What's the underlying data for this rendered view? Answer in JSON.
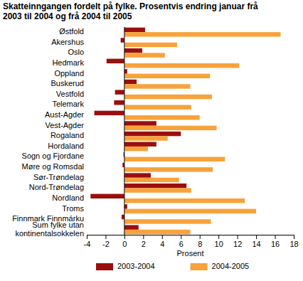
{
  "chart_data": {
    "type": "bar",
    "orientation": "horizontal",
    "title": [
      "Skatteinngangen fordelt på fylke. Prosentvis endring januar frå",
      "2003 til 2004 og frå 2004 til 2005"
    ],
    "x_label": "Prosent",
    "categories": [
      "Østfold",
      "Akershus",
      "Oslo",
      "Hedmark",
      "Oppland",
      "Buskerud",
      "Vestfold",
      "Telemark",
      "Aust-Agder",
      "Vest-Agder",
      "Rogaland",
      "Hordaland",
      "Sogn og Fjordane",
      "Møre og Romsdal",
      "Sør-Trøndelag",
      "Nord-Trøndelag",
      "Nordland",
      "Troms",
      "Finnmark Finnmárku",
      "Sum fylke utan kontinentalsokkelen"
    ],
    "series": [
      {
        "name": "2003-2004",
        "color": "#9b0e0e",
        "values": [
          2.2,
          -0.4,
          1.9,
          -1.9,
          0.3,
          1.3,
          -1.0,
          -1.1,
          -3.2,
          3.4,
          6.0,
          3.4,
          -0.1,
          -0.2,
          2.8,
          6.6,
          -3.6,
          0.3,
          -0.3,
          1.5
        ]
      },
      {
        "name": "2004-2005",
        "color": "#f7a23b",
        "values": [
          16.6,
          5.6,
          4.3,
          12.2,
          9.1,
          7.0,
          9.3,
          7.1,
          8.0,
          9.8,
          4.6,
          2.5,
          10.7,
          9.4,
          5.8,
          7.1,
          12.8,
          14.0,
          9.2,
          7.0
        ]
      }
    ],
    "xlim": [
      -4,
      18
    ],
    "xticks": [
      -4,
      -2,
      0,
      2,
      4,
      6,
      8,
      10,
      12,
      14,
      16,
      18
    ],
    "grid": false,
    "legend": "bottom"
  }
}
